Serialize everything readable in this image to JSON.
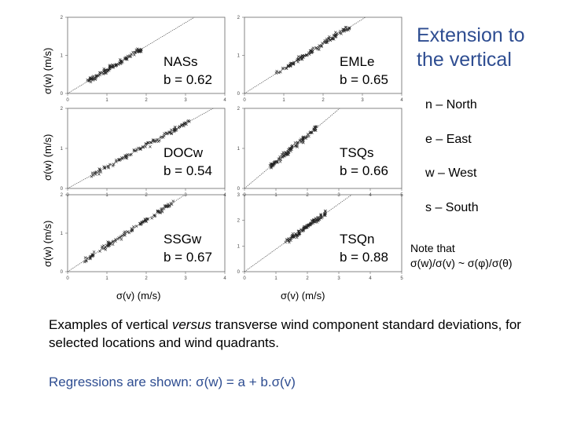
{
  "title": [
    "Extension to",
    "the vertical"
  ],
  "legend": [
    {
      "text": "n – North"
    },
    {
      "text": "e – East"
    },
    {
      "text": "w – West"
    },
    {
      "text": "s – South"
    }
  ],
  "note": [
    "Note that",
    "σ(w)/σ(v) ~ σ(φ)/σ(θ)"
  ],
  "ylabel": "σ(w)  (m/s)",
  "xlabel": "σ(v)  (m/s)",
  "caption_pre": "Examples of vertical ",
  "caption_em": "versus",
  "caption_post": " transverse wind component standard deviations, for selected locations and wind quadrants.",
  "regression": "Regressions are shown:   σ(w) = a + b.σ(v)",
  "colors": {
    "accent": "#2e4d91",
    "points": "#222222"
  },
  "chart_data": [
    {
      "type": "scatter",
      "name": "NASs",
      "b_label": "b = 0.62",
      "slope": 0.62,
      "intercept": 0.0,
      "xlim": [
        0,
        4
      ],
      "ylim": [
        0,
        2
      ],
      "xticks": [
        "0",
        "1",
        "2",
        "3",
        "4"
      ],
      "yticks": [
        "0",
        "1",
        "2"
      ],
      "x_range": [
        0.5,
        1.9
      ]
    },
    {
      "type": "scatter",
      "name": "EMLe",
      "b_label": "b = 0.65",
      "slope": 0.65,
      "intercept": 0.0,
      "xlim": [
        0,
        4
      ],
      "ylim": [
        0,
        2
      ],
      "xticks": [
        "0",
        "1",
        "2",
        "3",
        "4"
      ],
      "yticks": [
        "0",
        "1",
        "2"
      ],
      "x_range": [
        0.8,
        2.7
      ]
    },
    {
      "type": "scatter",
      "name": "DOCw",
      "b_label": "b = 0.54",
      "slope": 0.54,
      "intercept": 0.0,
      "xlim": [
        0,
        4
      ],
      "ylim": [
        0,
        2
      ],
      "xticks": [
        "0",
        "1",
        "2",
        "3",
        "4"
      ],
      "yticks": [
        "0",
        "1",
        "2"
      ],
      "x_range": [
        0.6,
        3.1
      ]
    },
    {
      "type": "scatter",
      "name": "TSQs",
      "b_label": "b = 0.66",
      "slope": 0.66,
      "intercept": 0.0,
      "xlim": [
        0,
        5
      ],
      "ylim": [
        0,
        2
      ],
      "xticks": [
        "0",
        "1",
        "2",
        "3",
        "4",
        "5"
      ],
      "yticks": [
        "0",
        "1",
        "2"
      ],
      "x_range": [
        0.8,
        2.3
      ]
    },
    {
      "type": "scatter",
      "name": "SSGw",
      "b_label": "b = 0.67",
      "slope": 0.67,
      "intercept": 0.0,
      "xlim": [
        0,
        4
      ],
      "ylim": [
        0,
        2
      ],
      "xticks": [
        "0",
        "1",
        "2",
        "3",
        "4"
      ],
      "yticks": [
        "0",
        "1",
        "2"
      ],
      "x_range": [
        0.4,
        2.7
      ]
    },
    {
      "type": "scatter",
      "name": "TSQn",
      "b_label": "b = 0.88",
      "slope": 0.88,
      "intercept": 0.0,
      "xlim": [
        0,
        5
      ],
      "ylim": [
        0,
        3
      ],
      "xticks": [
        "0",
        "1",
        "2",
        "3",
        "4",
        "5"
      ],
      "yticks": [
        "0",
        "1",
        "2",
        "3"
      ],
      "x_range": [
        1.3,
        2.6
      ]
    }
  ]
}
